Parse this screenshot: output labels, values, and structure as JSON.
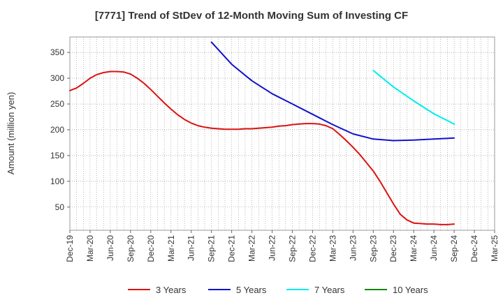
{
  "chart_data": {
    "type": "line",
    "title": "[7771]  Trend of StDev of 12-Month Moving Sum of Investing CF",
    "ylabel": "Amount (million yen)",
    "xlabel": "",
    "ylim": [
      5,
      380
    ],
    "yticks": [
      50,
      100,
      150,
      200,
      250,
      300,
      350
    ],
    "x_ticks": [
      "Dec-19",
      "Mar-20",
      "Jun-20",
      "Sep-20",
      "Dec-20",
      "Mar-21",
      "Jun-21",
      "Sep-21",
      "Dec-21",
      "Mar-22",
      "Jun-22",
      "Sep-22",
      "Dec-22",
      "Mar-23",
      "Jun-23",
      "Sep-23",
      "Dec-23",
      "Mar-24",
      "Jun-24",
      "Sep-24",
      "Dec-24",
      "Mar-25"
    ],
    "grid": true,
    "legend_position": "bottom",
    "series": [
      {
        "name": "3 Years",
        "color": "#dd1111",
        "x": [
          "Dec-19",
          "Jan-20",
          "Feb-20",
          "Mar-20",
          "Apr-20",
          "May-20",
          "Jun-20",
          "Jul-20",
          "Aug-20",
          "Sep-20",
          "Oct-20",
          "Nov-20",
          "Dec-20",
          "Jan-21",
          "Feb-21",
          "Mar-21",
          "Apr-21",
          "May-21",
          "Jun-21",
          "Jul-21",
          "Aug-21",
          "Sep-21",
          "Oct-21",
          "Nov-21",
          "Dec-21",
          "Jan-22",
          "Feb-22",
          "Mar-22",
          "Apr-22",
          "May-22",
          "Jun-22",
          "Jul-22",
          "Aug-22",
          "Sep-22",
          "Oct-22",
          "Nov-22",
          "Dec-22",
          "Jan-23",
          "Feb-23",
          "Mar-23",
          "Apr-23",
          "May-23",
          "Jun-23",
          "Jul-23",
          "Aug-23",
          "Sep-23",
          "Oct-23",
          "Nov-23",
          "Dec-23",
          "Jan-24",
          "Feb-24",
          "Mar-24",
          "Apr-24",
          "May-24",
          "Jun-24",
          "Jul-24",
          "Aug-24",
          "Sep-24"
        ],
        "values": [
          276,
          281,
          290,
          300,
          307,
          311,
          313,
          313,
          312,
          308,
          300,
          290,
          278,
          265,
          252,
          240,
          229,
          220,
          213,
          208,
          205,
          203,
          202,
          201,
          201,
          201,
          202,
          202,
          203,
          204,
          205,
          207,
          208,
          210,
          211,
          212,
          212,
          211,
          208,
          202,
          191,
          179,
          166,
          152,
          136,
          120,
          100,
          78,
          56,
          36,
          25,
          19,
          18,
          17,
          17,
          16,
          16,
          17
        ]
      },
      {
        "name": "5 Years",
        "color": "#1111cc",
        "x": [
          "Sep-21",
          "Dec-21",
          "Mar-22",
          "Jun-22",
          "Sep-22",
          "Dec-22",
          "Mar-23",
          "Jun-23",
          "Sep-23",
          "Dec-23",
          "Mar-24",
          "Jun-24",
          "Sep-24"
        ],
        "values": [
          370,
          327,
          295,
          270,
          250,
          230,
          210,
          192,
          182,
          179,
          180,
          182,
          184
        ]
      },
      {
        "name": "7 Years",
        "color": "#00eeee",
        "x": [
          "Sep-23",
          "Dec-23",
          "Mar-24",
          "Jun-24",
          "Sep-24"
        ],
        "values": [
          315,
          283,
          256,
          231,
          211
        ]
      },
      {
        "name": "10 Years",
        "color": "#118811",
        "x": [],
        "values": []
      }
    ]
  }
}
